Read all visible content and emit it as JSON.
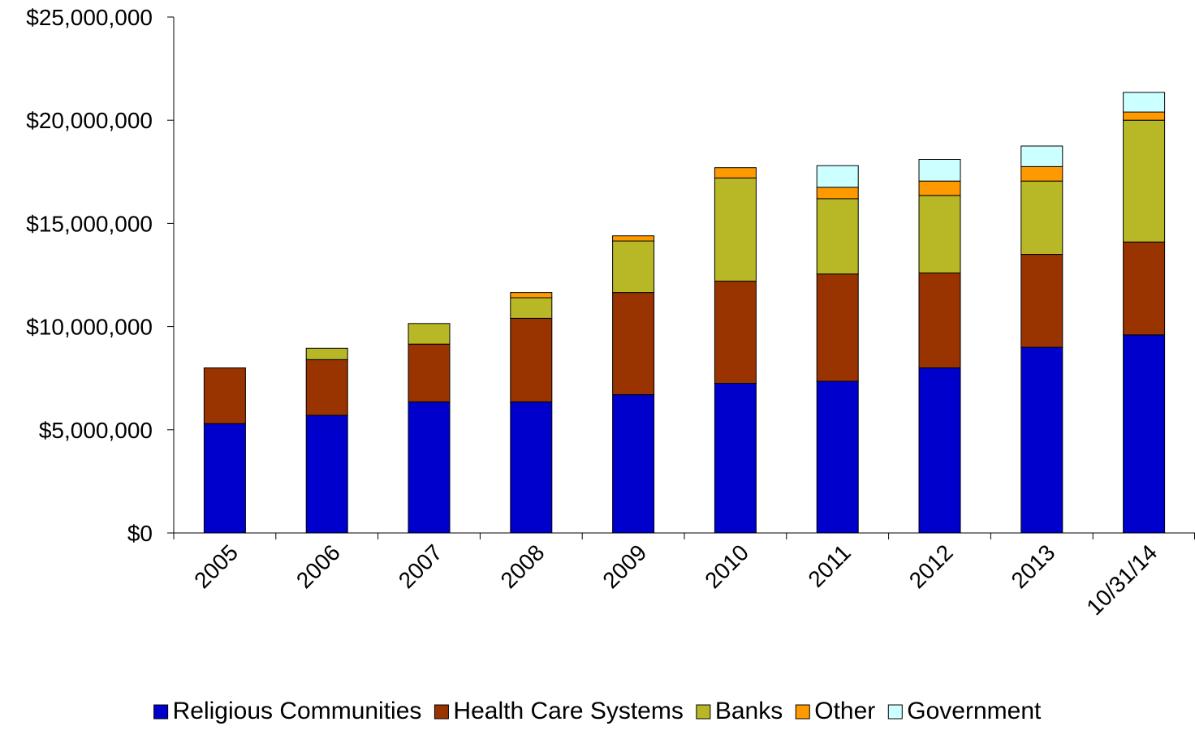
{
  "chart_data": {
    "type": "bar",
    "stacked": true,
    "categories": [
      "2005",
      "2006",
      "2007",
      "2008",
      "2009",
      "2010",
      "2011",
      "2012",
      "2013",
      "10/31/14"
    ],
    "series": [
      {
        "name": "Religious Communities",
        "color": "#0000cc",
        "values": [
          5300000,
          5700000,
          6350000,
          6350000,
          6700000,
          7250000,
          7350000,
          8000000,
          9000000,
          9600000
        ]
      },
      {
        "name": "Health Care Systems",
        "color": "#993300",
        "values": [
          2700000,
          2700000,
          2800000,
          4050000,
          4950000,
          4950000,
          5200000,
          4600000,
          4500000,
          4500000
        ]
      },
      {
        "name": "Banks",
        "color": "#b8b826",
        "values": [
          0,
          550000,
          1000000,
          1000000,
          2500000,
          5000000,
          3650000,
          3750000,
          3550000,
          5900000
        ]
      },
      {
        "name": "Other",
        "color": "#ff9900",
        "values": [
          0,
          0,
          0,
          250000,
          250000,
          500000,
          550000,
          700000,
          700000,
          400000
        ]
      },
      {
        "name": "Government",
        "color": "#ccffff",
        "values": [
          0,
          0,
          0,
          0,
          0,
          0,
          1050000,
          1050000,
          1000000,
          950000
        ]
      }
    ],
    "ylim": [
      0,
      25000000
    ],
    "yticks": [
      0,
      5000000,
      10000000,
      15000000,
      20000000,
      25000000
    ],
    "ytick_labels": [
      "$0",
      "$5,000,000",
      "$10,000,000",
      "$15,000,000",
      "$20,000,000",
      "$25,000,000"
    ],
    "title": "",
    "xlabel": "",
    "ylabel": "",
    "grid": false,
    "legend_position": "bottom"
  }
}
